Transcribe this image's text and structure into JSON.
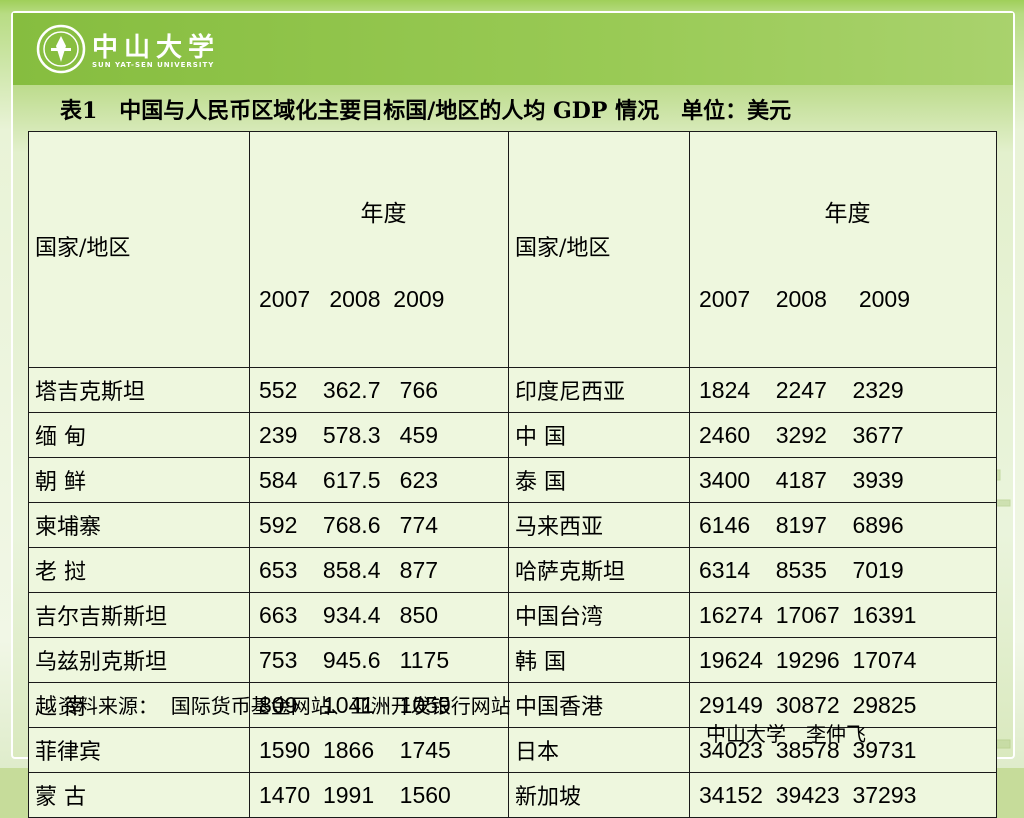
{
  "logo": {
    "name_cn": "中山大学",
    "name_en": "SUN YAT-SEN UNIVERSITY"
  },
  "title": "表1　中国与人民币区域化主要目标国/地区的人均 GDP 情况　单位：美元",
  "table": {
    "header": {
      "left_label": "国家/地区",
      "right_label": "国家/地区",
      "year_caption": "年度",
      "left_years": "2007   2008  2009",
      "right_years": "2007    2008     2009"
    },
    "rows": [
      {
        "left_name": "塔吉克斯坦",
        "left_values": "552    362.7   766",
        "right_name": "印度尼西亚",
        "right_values": "1824    2247    2329"
      },
      {
        "left_name": "缅 甸",
        "left_values": "239    578.3   459",
        "right_name": "中 国",
        "right_values": "2460    3292    3677"
      },
      {
        "left_name": "朝 鲜",
        "left_values": "584    617.5   623",
        "right_name": "泰 国",
        "right_values": "3400    4187    3939"
      },
      {
        "left_name": "柬埔寨",
        "left_values": "592    768.6   774",
        "right_name": "马来西亚",
        "right_values": "6146    8197    6896"
      },
      {
        "left_name": "老 挝",
        "left_values": "653    858.4   877",
        "right_name": "哈萨克斯坦",
        "right_values": "6314    8535    7019"
      },
      {
        "left_name": "吉尔吉斯斯坦",
        "left_values": "663    934.4   850",
        "right_name": "中国台湾",
        "right_values": "16274  17067  16391"
      },
      {
        "left_name": "乌兹别克斯坦",
        "left_values": "753    945.6   1175",
        "right_name": "韩 国",
        "right_values": "19624  19296  17074"
      },
      {
        "left_name": "越 南",
        "left_values": "809    1041    1059",
        "right_name": "中国香港",
        "right_values": "29149  30872  29825"
      },
      {
        "left_name": "菲律宾",
        "left_values": "1590  1866    1745",
        "right_name": "日本",
        "right_values": "34023  38578  39731"
      },
      {
        "left_name": "蒙 古",
        "left_values": "1470  1991    1560",
        "right_name": "新加坡",
        "right_values": "34152  39423  37293"
      }
    ]
  },
  "source": "资料来源：  国际货币基金网站、亚洲开发银行网站",
  "author": "中山大学　李仲飞",
  "colors": {
    "banner_green": "#86bd3f",
    "table_fill": "#eef7de",
    "border": "#1a1a1a"
  }
}
